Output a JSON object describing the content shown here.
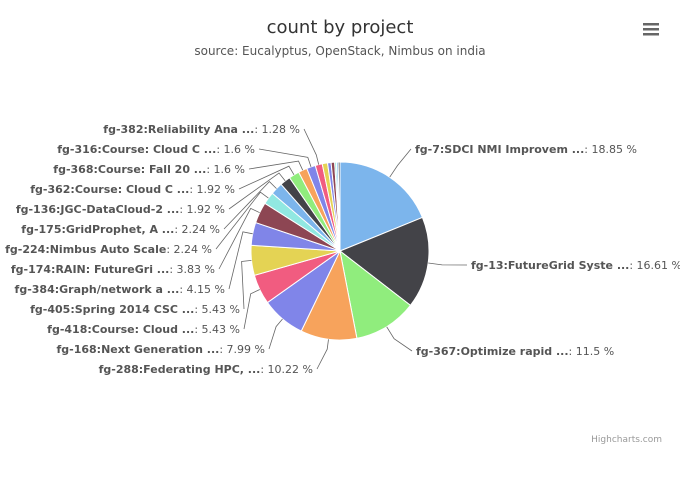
{
  "chart_data": {
    "type": "pie",
    "title": "count by project",
    "subtitle": "source: Eucalyptus, OpenStack, Nimbus on india",
    "credits": "Highcharts.com",
    "slices": [
      {
        "label": "fg-7:SDCI NMI Improvem ...",
        "value": 18.85,
        "color": "#7cb5ec"
      },
      {
        "label": "fg-13:FutureGrid Syste ...",
        "value": 16.61,
        "color": "#434348"
      },
      {
        "label": "fg-367:Optimize rapid ...",
        "value": 11.5,
        "color": "#90ed7d"
      },
      {
        "label": "fg-288:Federating HPC, ...",
        "value": 10.22,
        "color": "#f7a35c"
      },
      {
        "label": "fg-168:Next Generation ...",
        "value": 7.99,
        "color": "#8085e9"
      },
      {
        "label": "fg-418:Course: Cloud ...",
        "value": 5.43,
        "color": "#f15c80"
      },
      {
        "label": "fg-405:Spring 2014 CSC ...",
        "value": 5.43,
        "color": "#e4d354"
      },
      {
        "label": "fg-384:Graph/network a ...",
        "value": 4.15,
        "color": "#8085e8"
      },
      {
        "label": "fg-174:RAIN: FutureGri ...",
        "value": 3.83,
        "color": "#8d4653"
      },
      {
        "label": "fg-224:Nimbus Auto Scale",
        "value": 2.24,
        "color": "#91e8e1"
      },
      {
        "label": "fg-175:GridProphet, A ...",
        "value": 2.24,
        "color": "#7cb5ec"
      },
      {
        "label": "fg-136:JGC-DataCloud-2 ...",
        "value": 1.92,
        "color": "#434348"
      },
      {
        "label": "fg-362:Course: Cloud C ...",
        "value": 1.92,
        "color": "#90ed7d"
      },
      {
        "label": "fg-368:Course: Fall 20 ...",
        "value": 1.6,
        "color": "#f7a35c"
      },
      {
        "label": "fg-316:Course: Cloud C ...",
        "value": 1.6,
        "color": "#8085e9"
      },
      {
        "label": "fg-382:Reliability Ana ...",
        "value": 1.28,
        "color": "#f15c80"
      },
      {
        "label": "",
        "value": 0.96,
        "color": "#e4d354"
      },
      {
        "label": "",
        "value": 0.64,
        "color": "#8085e8"
      },
      {
        "label": "",
        "value": 0.64,
        "color": "#8d4653"
      },
      {
        "label": "",
        "value": 0.32,
        "color": "#91e8e1"
      },
      {
        "label": "",
        "value": 0.32,
        "color": "#7cb5ec"
      },
      {
        "label": "",
        "value": 0.32,
        "color": "#434348"
      }
    ]
  },
  "menu": {
    "icon": "hamburger-menu-icon"
  }
}
